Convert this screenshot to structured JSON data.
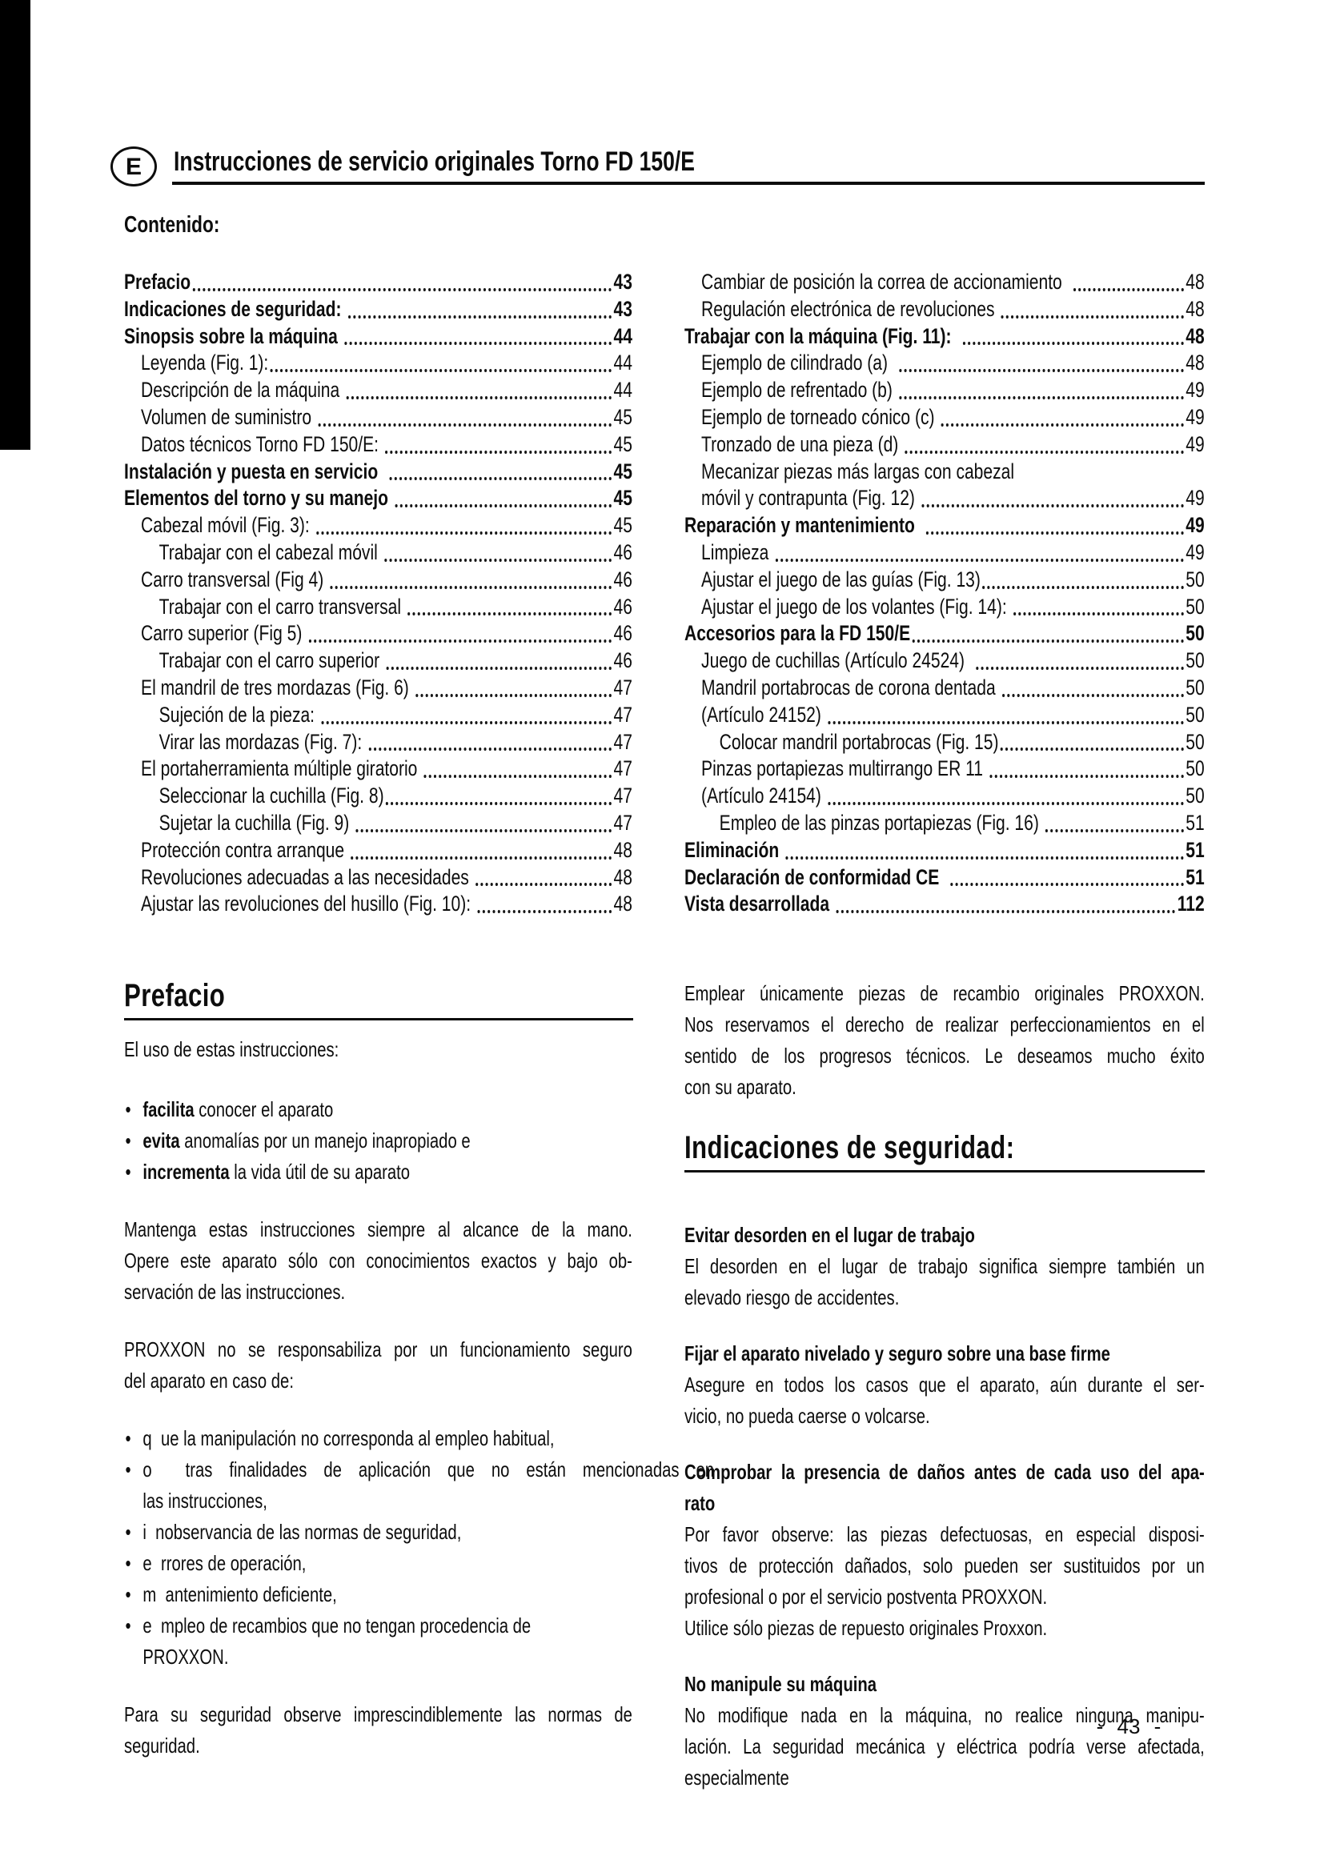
{
  "page": {
    "lang_badge": "E",
    "header_title": "Instrucciones de servicio originales Torno FD 150/E",
    "contents_label": "Contenido:",
    "page_number": "- 43 -"
  },
  "toc": {
    "left": [
      {
        "label": "Prefacio",
        "page": "43",
        "bold": true,
        "indent": 0
      },
      {
        "label": "Indicaciones de seguridad: ",
        "page": "43",
        "bold": true,
        "indent": 0
      },
      {
        "label": "Sinopsis sobre la máquina ",
        "page": "44",
        "bold": true,
        "indent": 0
      },
      {
        "label": "Leyenda (Fig. 1):",
        "page": "44",
        "bold": false,
        "indent": 1
      },
      {
        "label": "Descripción de la máquina ",
        "page": "44",
        "bold": false,
        "indent": 1
      },
      {
        "label": "Volumen de suministro ",
        "page": "45",
        "bold": false,
        "indent": 1
      },
      {
        "label": "Datos técnicos Torno FD 150/E: ",
        "page": "45",
        "bold": false,
        "indent": 1
      },
      {
        "label": "Instalación y puesta en servicio  ",
        "page": "45",
        "bold": true,
        "indent": 0
      },
      {
        "label": "Elementos del torno y su manejo ",
        "page": "45",
        "bold": true,
        "indent": 0
      },
      {
        "label": "Cabezal móvil (Fig. 3): ",
        "page": "45",
        "bold": false,
        "indent": 1
      },
      {
        "label": "Trabajar con el cabezal móvil ",
        "page": "46",
        "bold": false,
        "indent": 2
      },
      {
        "label": "Carro transversal (Fig 4) ",
        "page": "46",
        "bold": false,
        "indent": 1
      },
      {
        "label": "Trabajar con el carro transversal ",
        "page": "46",
        "bold": false,
        "indent": 2
      },
      {
        "label": "Carro superior (Fig 5) ",
        "page": "46",
        "bold": false,
        "indent": 1
      },
      {
        "label": "Trabajar con el carro superior ",
        "page": "46",
        "bold": false,
        "indent": 2
      },
      {
        "label": "El mandril de tres mordazas (Fig. 6) ",
        "page": "47",
        "bold": false,
        "indent": 1
      },
      {
        "label": "Sujeción de la pieza: ",
        "page": "47",
        "bold": false,
        "indent": 2
      },
      {
        "label": "Virar las mordazas (Fig. 7): ",
        "page": "47",
        "bold": false,
        "indent": 2
      },
      {
        "label": "El portaherramienta múltiple giratorio ",
        "page": "47",
        "bold": false,
        "indent": 1
      },
      {
        "label": "Seleccionar la cuchilla (Fig. 8)",
        "page": "47",
        "bold": false,
        "indent": 2
      },
      {
        "label": "Sujetar la cuchilla (Fig. 9) ",
        "page": "47",
        "bold": false,
        "indent": 2
      },
      {
        "label": "Protección contra arranque ",
        "page": "48",
        "bold": false,
        "indent": 1
      },
      {
        "label": "Revoluciones adecuadas a las necesidades ",
        "page": "48",
        "bold": false,
        "indent": 1
      },
      {
        "label": "Ajustar las revoluciones del husillo (Fig. 10): ",
        "page": "48",
        "bold": false,
        "indent": 1
      }
    ],
    "right": [
      {
        "label": "Cambiar de posición la correa de accionamiento  ",
        "page": "48",
        "bold": false,
        "indent": 1
      },
      {
        "label": "Regulación electrónica de revoluciones ",
        "page": "48",
        "bold": false,
        "indent": 1
      },
      {
        "label": "Trabajar con la máquina (Fig. 11):  ",
        "page": "48",
        "bold": true,
        "indent": 0
      },
      {
        "label": "Ejemplo de cilindrado (a)  ",
        "page": "48",
        "bold": false,
        "indent": 1
      },
      {
        "label": "Ejemplo de refrentado (b) ",
        "page": "49",
        "bold": false,
        "indent": 1
      },
      {
        "label": "Ejemplo de torneado cónico (c) ",
        "page": "49",
        "bold": false,
        "indent": 1
      },
      {
        "label": "Tronzado de una pieza (d) ",
        "page": "49",
        "bold": false,
        "indent": 1
      },
      {
        "label": "Mecanizar piezas más largas con cabezal",
        "page": null,
        "bold": false,
        "indent": 1
      },
      {
        "label": "móvil y contrapunta (Fig. 12) ",
        "page": "49",
        "bold": false,
        "indent": 1
      },
      {
        "label": "Reparación y mantenimiento  ",
        "page": "49",
        "bold": true,
        "indent": 0
      },
      {
        "label": "Limpieza ",
        "page": "49",
        "bold": false,
        "indent": 1
      },
      {
        "label": "Ajustar el juego de las guías (Fig. 13)",
        "page": "50",
        "bold": false,
        "indent": 1
      },
      {
        "label": "Ajustar el juego de los volantes (Fig. 14): ",
        "page": "50",
        "bold": false,
        "indent": 1
      },
      {
        "label": "Accesorios para la FD 150/E",
        "page": "50",
        "bold": true,
        "indent": 0
      },
      {
        "label": "Juego de cuchillas (Artículo 24524)  ",
        "page": "50",
        "bold": false,
        "indent": 1
      },
      {
        "label": "Mandril portabrocas de corona dentada ",
        "page": "50",
        "bold": false,
        "indent": 1
      },
      {
        "label": "(Artículo 24152) ",
        "page": "50",
        "bold": false,
        "indent": 1
      },
      {
        "label": "Colocar mandril portabrocas (Fig. 15)",
        "page": "50",
        "bold": false,
        "indent": 2
      },
      {
        "label": "Pinzas portapiezas multirrango ER 11 ",
        "page": "50",
        "bold": false,
        "indent": 1
      },
      {
        "label": "(Artículo 24154) ",
        "page": "50",
        "bold": false,
        "indent": 1
      },
      {
        "label": "Empleo de las pinzas portapiezas (Fig. 16) ",
        "page": "51",
        "bold": false,
        "indent": 2
      },
      {
        "label": "Eliminación ",
        "page": "51",
        "bold": true,
        "indent": 0
      },
      {
        "label": "Declaración de conformidad CE  ",
        "page": "51",
        "bold": true,
        "indent": 0
      },
      {
        "label": "Vista desarrollada ",
        "page": "112",
        "bold": true,
        "indent": 0
      }
    ]
  },
  "prefacio": {
    "title": "Prefacio",
    "intro_lines": [
      "El uso de estas instrucciones:"
    ],
    "feature_bullets": [
      {
        "bold": "facilita",
        "rest": " conocer el aparato"
      },
      {
        "bold": "evita",
        "rest": " anomalías por un manejo inapropiado e"
      },
      {
        "bold": "incrementa",
        "rest": " la vida útil de su aparato"
      }
    ],
    "para1_lines": [
      "Mantenga estas instrucciones siempre al alcance de la mano.",
      "Opere este aparato sólo con conocimientos exactos y bajo ob-",
      "servación de las instrucciones."
    ],
    "para2_lines": [
      "PROXXON no se responsabiliza por un funcionamiento seguro",
      "del aparato en caso de:"
    ],
    "cause_bullets": [
      {
        "lines": [
          "q  ue la manipulación no corresponda al empleo habitual,"
        ],
        "wide_first": false
      },
      {
        "lines": [
          "o  tras finalidades de aplicación que no están mencionadas en",
          "las instrucciones,"
        ],
        "wide_first": true
      },
      {
        "lines": [
          "i  nobservancia de las normas de seguridad,"
        ],
        "wide_first": false
      },
      {
        "lines": [
          "e  rrores de operación,"
        ],
        "wide_first": false
      },
      {
        "lines": [
          "m  antenimiento deficiente,"
        ],
        "wide_first": false
      },
      {
        "lines": [
          "e  mpleo de recambios que no tengan procedencia de",
          "PROXXON."
        ],
        "wide_first": false
      }
    ],
    "para3_lines": [
      "Para su seguridad observe imprescindiblemente las normas de",
      "seguridad."
    ]
  },
  "right_column": {
    "para1_lines": [
      "Emplear únicamente piezas de recambio originales PROXXON.",
      "Nos reservamos el derecho de realizar perfeccionamientos en el",
      "sentido de los progresos técnicos. Le deseamos mucho éxito",
      "con su aparato."
    ],
    "security_title": "Indicaciones de seguridad:",
    "safety_blocks": [
      {
        "heading_lines": [
          "Evitar desorden en el lugar de trabajo"
        ],
        "paragraphs": [
          [
            "El desorden en el lugar de trabajo significa siempre también un",
            "elevado riesgo de accidentes."
          ]
        ]
      },
      {
        "heading_lines": [
          "Fijar el aparato nivelado y seguro sobre una base firme"
        ],
        "paragraphs": [
          [
            "Asegure en todos los casos que el aparato, aún durante el ser-",
            "vicio, no pueda caerse o volcarse."
          ]
        ]
      },
      {
        "heading_lines": [
          "Comprobar la presencia de daños antes de cada uso del apa-",
          "rato"
        ],
        "paragraphs": [
          [
            "Por favor observe: las piezas defectuosas, en especial disposi-",
            "tivos de protección dañados, solo pueden ser sustituidos por un",
            "profesional o por el servicio postventa PROXXON."
          ],
          [
            "Utilice sólo piezas de repuesto originales Proxxon."
          ]
        ]
      },
      {
        "heading_lines": [
          "No manipule su máquina"
        ],
        "paragraphs": [
          [
            "No modifique nada en la máquina, no realice ninguna manipu-",
            "lación. La seguridad mecánica y eléctrica podría verse afectada,",
            "especialmente"
          ]
        ]
      }
    ]
  },
  "colors": {
    "ink": "#0d0d0d",
    "paper": "#ffffff"
  }
}
